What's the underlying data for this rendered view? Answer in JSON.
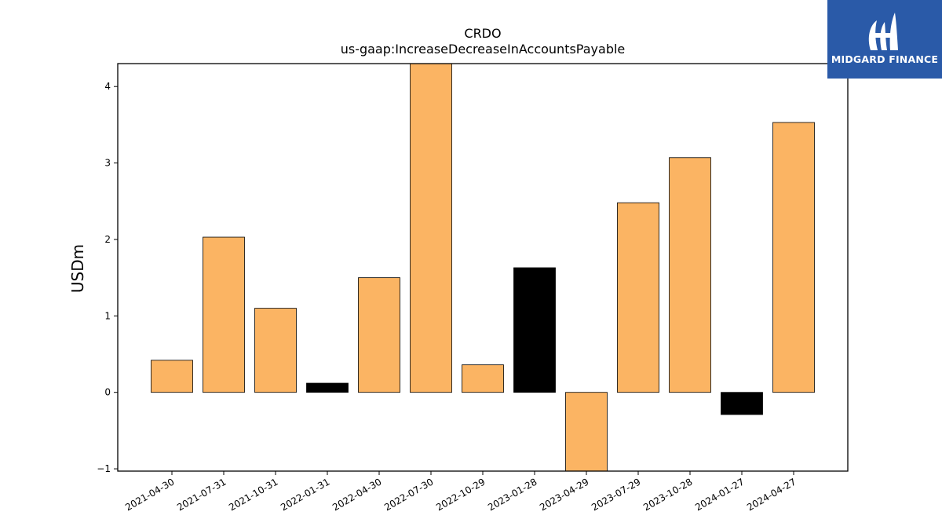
{
  "chart_data": {
    "type": "bar",
    "title": "CRDO",
    "subtitle": "us-gaap:IncreaseDecreaseInAccountsPayable",
    "xlabel": "",
    "ylabel": "USDm",
    "ylim": [
      -1.03,
      4.3
    ],
    "yticks": [
      -1,
      0,
      1,
      2,
      3,
      4
    ],
    "ytick_labels": [
      "−1",
      "0",
      "1",
      "2",
      "3",
      "4"
    ],
    "categories": [
      "2021-04-30",
      "2021-07-31",
      "2021-10-31",
      "2022-01-31",
      "2022-04-30",
      "2022-07-30",
      "2022-10-29",
      "2023-01-28",
      "2023-04-29",
      "2023-07-29",
      "2023-10-28",
      "2024-01-27",
      "2024-04-27"
    ],
    "values": [
      0.42,
      2.03,
      1.1,
      0.12,
      1.5,
      4.3,
      0.36,
      1.63,
      -1.03,
      2.48,
      3.07,
      -0.29,
      3.53
    ],
    "bar_colors": [
      "#fbb463",
      "#fbb463",
      "#fbb463",
      "#000000",
      "#fbb463",
      "#fbb463",
      "#fbb463",
      "#000000",
      "#fbb463",
      "#fbb463",
      "#fbb463",
      "#000000",
      "#fbb463"
    ],
    "grid": false,
    "legend": "none"
  },
  "logo": {
    "text": "MIDGARD FINANCE",
    "background": "#2a5aa8"
  }
}
